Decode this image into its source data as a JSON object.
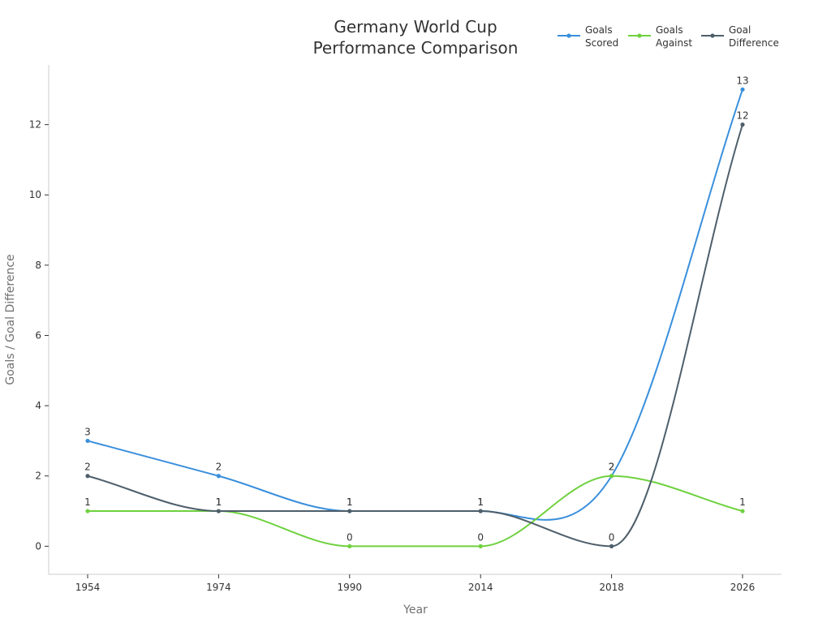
{
  "chart_data": {
    "type": "line",
    "title_lines": [
      "Germany World Cup",
      "Performance Comparison"
    ],
    "xlabel": "Year",
    "ylabel": "Goals / Goal Difference",
    "categories": [
      "1954",
      "1974",
      "1990",
      "2014",
      "2018",
      "2026"
    ],
    "ylim": [
      -0.8,
      13.7
    ],
    "yticks": [
      0,
      2,
      4,
      6,
      8,
      10,
      12
    ],
    "grid": false,
    "legend_position": "top-right",
    "series": [
      {
        "name_lines": [
          "Goals",
          "Scored"
        ],
        "color": "#3a8fdc",
        "values": [
          3,
          2,
          1,
          1,
          2,
          13
        ]
      },
      {
        "name_lines": [
          "Goals",
          "Against"
        ],
        "color": "#6fd13f",
        "values": [
          1,
          1,
          0,
          0,
          2,
          1
        ]
      },
      {
        "name_lines": [
          "Goal",
          "Difference"
        ],
        "color": "#4e5f6b",
        "values": [
          2,
          1,
          1,
          1,
          0,
          12
        ]
      }
    ]
  }
}
